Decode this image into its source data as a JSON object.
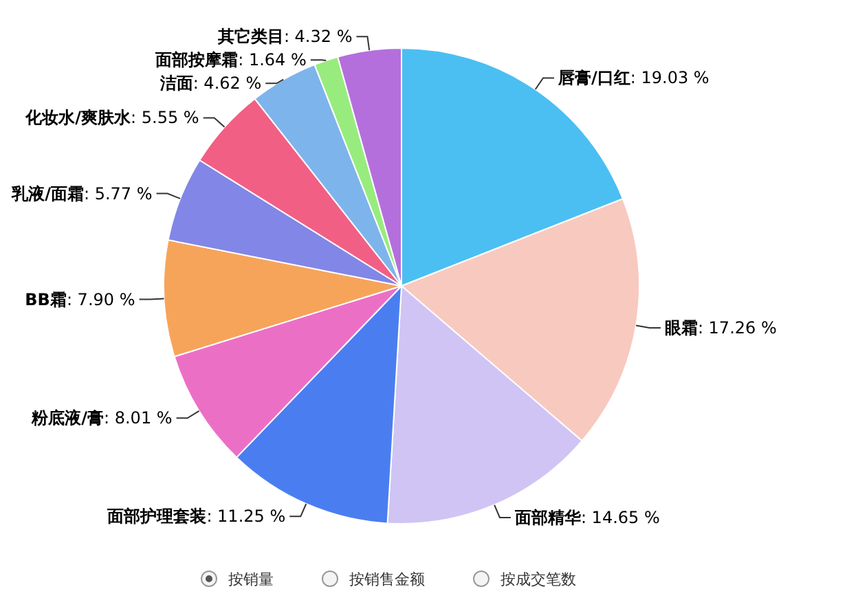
{
  "chart_data": {
    "type": "pie",
    "categories": [
      "唇膏/口红",
      "眼霜",
      "面部精华",
      "面部护理套装",
      "粉底液/膏",
      "BB霜",
      "乳液/面霜",
      "化妆水/爽肤水",
      "洁面",
      "面部按摩霜",
      "其它类目"
    ],
    "values": [
      19.03,
      17.26,
      14.65,
      11.25,
      8.01,
      7.9,
      5.77,
      5.55,
      4.62,
      1.64,
      4.32
    ],
    "value_labels": [
      ": 19.03 %",
      ": 17.26 %",
      ": 14.65 %",
      ": 11.25 %",
      ": 8.01 %",
      ": 7.90 %",
      ": 5.77 %",
      ": 5.55 %",
      ": 4.62 %",
      ": 1.64 %",
      ": 4.32 %"
    ],
    "colors": [
      "#4bbff2",
      "#f8c9bf",
      "#d0c4f5",
      "#4a7ef0",
      "#ec6fc6",
      "#f7a45b",
      "#8286e6",
      "#f25f84",
      "#7eb4ec",
      "#98ec7e",
      "#b46fdc"
    ],
    "annotations": [
      "按销量",
      "按销售金额",
      "按成交笔数"
    ]
  }
}
